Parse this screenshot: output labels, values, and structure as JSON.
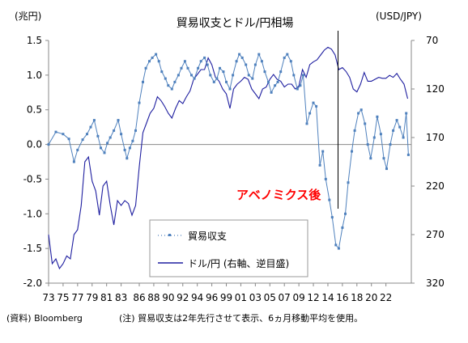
{
  "chart_data": {
    "type": "line",
    "title": "貿易収支とドル/円相場",
    "left_axis": {
      "unit": "(兆円)",
      "ylim": [
        -2.0,
        1.5
      ],
      "ticks": [
        "1.5",
        "1.0",
        "0.5",
        "0.0",
        "-0.5",
        "-1.0",
        "-1.5",
        "-2.0"
      ],
      "tick_values": [
        1.5,
        1.0,
        0.5,
        0.0,
        -0.5,
        -1.0,
        -1.5,
        -2.0
      ]
    },
    "right_axis": {
      "unit": "(USD/JPY)",
      "inverted": true,
      "ylim": [
        70,
        320
      ],
      "ticks": [
        "70",
        "120",
        "170",
        "220",
        "270",
        "320"
      ],
      "tick_values": [
        70,
        120,
        170,
        220,
        270,
        320
      ]
    },
    "x_axis": {
      "range": [
        1973,
        2023
      ],
      "ticks": [
        "73",
        "75",
        "77",
        "79",
        "81",
        "83",
        "86",
        "88",
        "90",
        "92",
        "94",
        "96",
        "99",
        "01",
        "03",
        "05",
        "07",
        "09",
        "12",
        "14",
        "16",
        "18",
        "20",
        "22"
      ],
      "tick_values": [
        1973,
        1975,
        1977,
        1979,
        1981,
        1983,
        1985.5,
        1987.5,
        1989.5,
        1991.5,
        1993.5,
        1995.5,
        1997.5,
        1999.5,
        2001.5,
        2003.5,
        2005.5,
        2007.5,
        2009.5,
        2011.5,
        2013.5,
        2015.5,
        2017.5,
        2019.5
      ]
    },
    "legend": {
      "position": "bottom-center",
      "entries": [
        "貿易収支",
        "ドル/円 (右軸、逆目盛)"
      ]
    },
    "annotation": {
      "text": "アベノミクス後",
      "x": 2012.9,
      "color": "#ff0000"
    },
    "series": [
      {
        "name": "貿易収支",
        "axis": "left",
        "color": "#4f81bd",
        "style": "dotted-markers",
        "x": [
          1973.0,
          1974.0,
          1975.0,
          1975.8,
          1976.5,
          1977.0,
          1977.7,
          1978.3,
          1978.8,
          1979.3,
          1979.8,
          1980.2,
          1980.7,
          1981.1,
          1981.5,
          1982.0,
          1982.6,
          1983.0,
          1983.5,
          1983.8,
          1984.2,
          1984.6,
          1985.0,
          1985.5,
          1986.0,
          1986.4,
          1986.9,
          1987.3,
          1987.8,
          1988.2,
          1988.6,
          1989.1,
          1989.5,
          1990.0,
          1990.4,
          1990.9,
          1991.3,
          1991.8,
          1992.2,
          1992.7,
          1993.1,
          1993.6,
          1994.0,
          1994.5,
          1994.9,
          1995.3,
          1995.8,
          1996.2,
          1996.6,
          1997.1,
          1997.5,
          1998.0,
          1998.4,
          1998.9,
          1999.3,
          1999.7,
          2000.2,
          2000.6,
          2001.1,
          2001.5,
          2002.0,
          2002.4,
          2002.8,
          2003.3,
          2003.7,
          2004.2,
          2004.6,
          2005.0,
          2005.5,
          2005.9,
          2006.4,
          2006.8,
          2007.3,
          2007.7,
          2008.1,
          2008.6,
          2009.0,
          2009.5,
          2009.9,
          2010.4,
          2010.8,
          2011.2,
          2011.7,
          2012.1,
          2012.6,
          2013.0,
          2013.5,
          2013.9,
          2014.3,
          2014.8,
          2015.2,
          2015.7,
          2016.1,
          2016.6,
          2017.0,
          2017.4,
          2017.9,
          2018.3,
          2018.8,
          2019.2,
          2019.6,
          2020.1,
          2020.5,
          2021.0,
          2021.4,
          2021.9,
          2022.3,
          2022.6
        ],
        "y": [
          0.0,
          0.18,
          0.15,
          0.08,
          -0.25,
          -0.08,
          0.07,
          0.15,
          0.25,
          0.35,
          0.12,
          -0.05,
          -0.12,
          0.02,
          0.1,
          0.2,
          0.35,
          0.15,
          -0.08,
          -0.2,
          -0.05,
          0.05,
          0.2,
          0.6,
          0.9,
          1.1,
          1.2,
          1.25,
          1.3,
          1.2,
          1.05,
          0.95,
          0.85,
          0.8,
          0.9,
          1.0,
          1.1,
          1.2,
          1.1,
          1.0,
          0.95,
          1.1,
          1.2,
          1.25,
          1.15,
          1.0,
          0.9,
          0.95,
          1.1,
          1.05,
          0.9,
          0.8,
          1.0,
          1.2,
          1.3,
          1.25,
          1.15,
          1.0,
          0.95,
          1.15,
          1.3,
          1.2,
          1.05,
          0.9,
          0.75,
          0.85,
          0.9,
          1.05,
          1.25,
          1.3,
          1.2,
          1.0,
          0.8,
          0.85,
          1.0,
          0.3,
          0.45,
          0.6,
          0.55,
          -0.3,
          -0.1,
          -0.5,
          -0.8,
          -1.05,
          -1.45,
          -1.5,
          -1.2,
          -1.0,
          -0.55,
          -0.1,
          0.2,
          0.45,
          0.5,
          0.3,
          0.0,
          -0.2,
          0.1,
          0.4,
          0.15,
          -0.2,
          -0.35,
          0.0,
          0.2,
          0.35,
          0.25,
          0.1,
          0.45,
          -0.15
        ]
      },
      {
        "name": "ドル/円 (右軸、逆目盛)",
        "axis": "right",
        "color": "#1f1fa0",
        "style": "line",
        "x": [
          1973.0,
          1973.5,
          1974.0,
          1974.5,
          1975.0,
          1975.5,
          1976.0,
          1976.5,
          1977.0,
          1977.5,
          1978.0,
          1978.5,
          1979.0,
          1979.5,
          1980.0,
          1980.5,
          1981.0,
          1981.5,
          1982.0,
          1982.5,
          1983.0,
          1983.5,
          1984.0,
          1984.5,
          1985.0,
          1985.5,
          1986.0,
          1986.5,
          1987.0,
          1987.5,
          1988.0,
          1988.5,
          1989.0,
          1989.5,
          1990.0,
          1990.5,
          1991.0,
          1991.5,
          1992.0,
          1992.5,
          1993.0,
          1993.5,
          1994.0,
          1994.5,
          1995.0,
          1995.5,
          1996.0,
          1996.5,
          1997.0,
          1997.5,
          1998.0,
          1998.5,
          1999.0,
          1999.5,
          2000.0,
          2000.5,
          2001.0,
          2001.5,
          2002.0,
          2002.5,
          2003.0,
          2003.5,
          2004.0,
          2004.5,
          2005.0,
          2005.5,
          2006.0,
          2006.5,
          2007.0,
          2007.5,
          2008.0,
          2008.5,
          2009.0,
          2009.5,
          2010.0,
          2010.5,
          2011.0,
          2011.5,
          2012.0,
          2012.5,
          2013.0,
          2013.5,
          2014.0,
          2014.5,
          2015.0,
          2015.5,
          2016.0,
          2016.5,
          2017.0,
          2017.5,
          2018.0,
          2018.5,
          2019.0,
          2019.5,
          2020.0,
          2020.5,
          2021.0,
          2021.5,
          2022.0,
          2022.5
        ],
        "y": [
          270,
          300,
          295,
          305,
          300,
          292,
          295,
          270,
          265,
          240,
          195,
          190,
          215,
          225,
          250,
          220,
          215,
          240,
          260,
          235,
          240,
          235,
          238,
          250,
          240,
          200,
          165,
          155,
          145,
          140,
          128,
          132,
          138,
          145,
          150,
          140,
          132,
          135,
          128,
          122,
          110,
          105,
          100,
          100,
          88,
          95,
          108,
          112,
          120,
          125,
          140,
          120,
          115,
          112,
          108,
          110,
          120,
          125,
          130,
          120,
          118,
          110,
          105,
          110,
          112,
          118,
          115,
          115,
          120,
          117,
          100,
          108,
          95,
          92,
          90,
          85,
          80,
          77,
          79,
          85,
          100,
          98,
          102,
          108,
          120,
          123,
          115,
          103,
          112,
          112,
          110,
          108,
          109,
          109,
          106,
          108,
          104,
          110,
          115,
          130
        ]
      }
    ]
  },
  "footer": {
    "source": "(資料) Bloomberg",
    "note": "(注) 貿易収支は2年先行させて表示、6ヵ月移動平均を使用。"
  }
}
